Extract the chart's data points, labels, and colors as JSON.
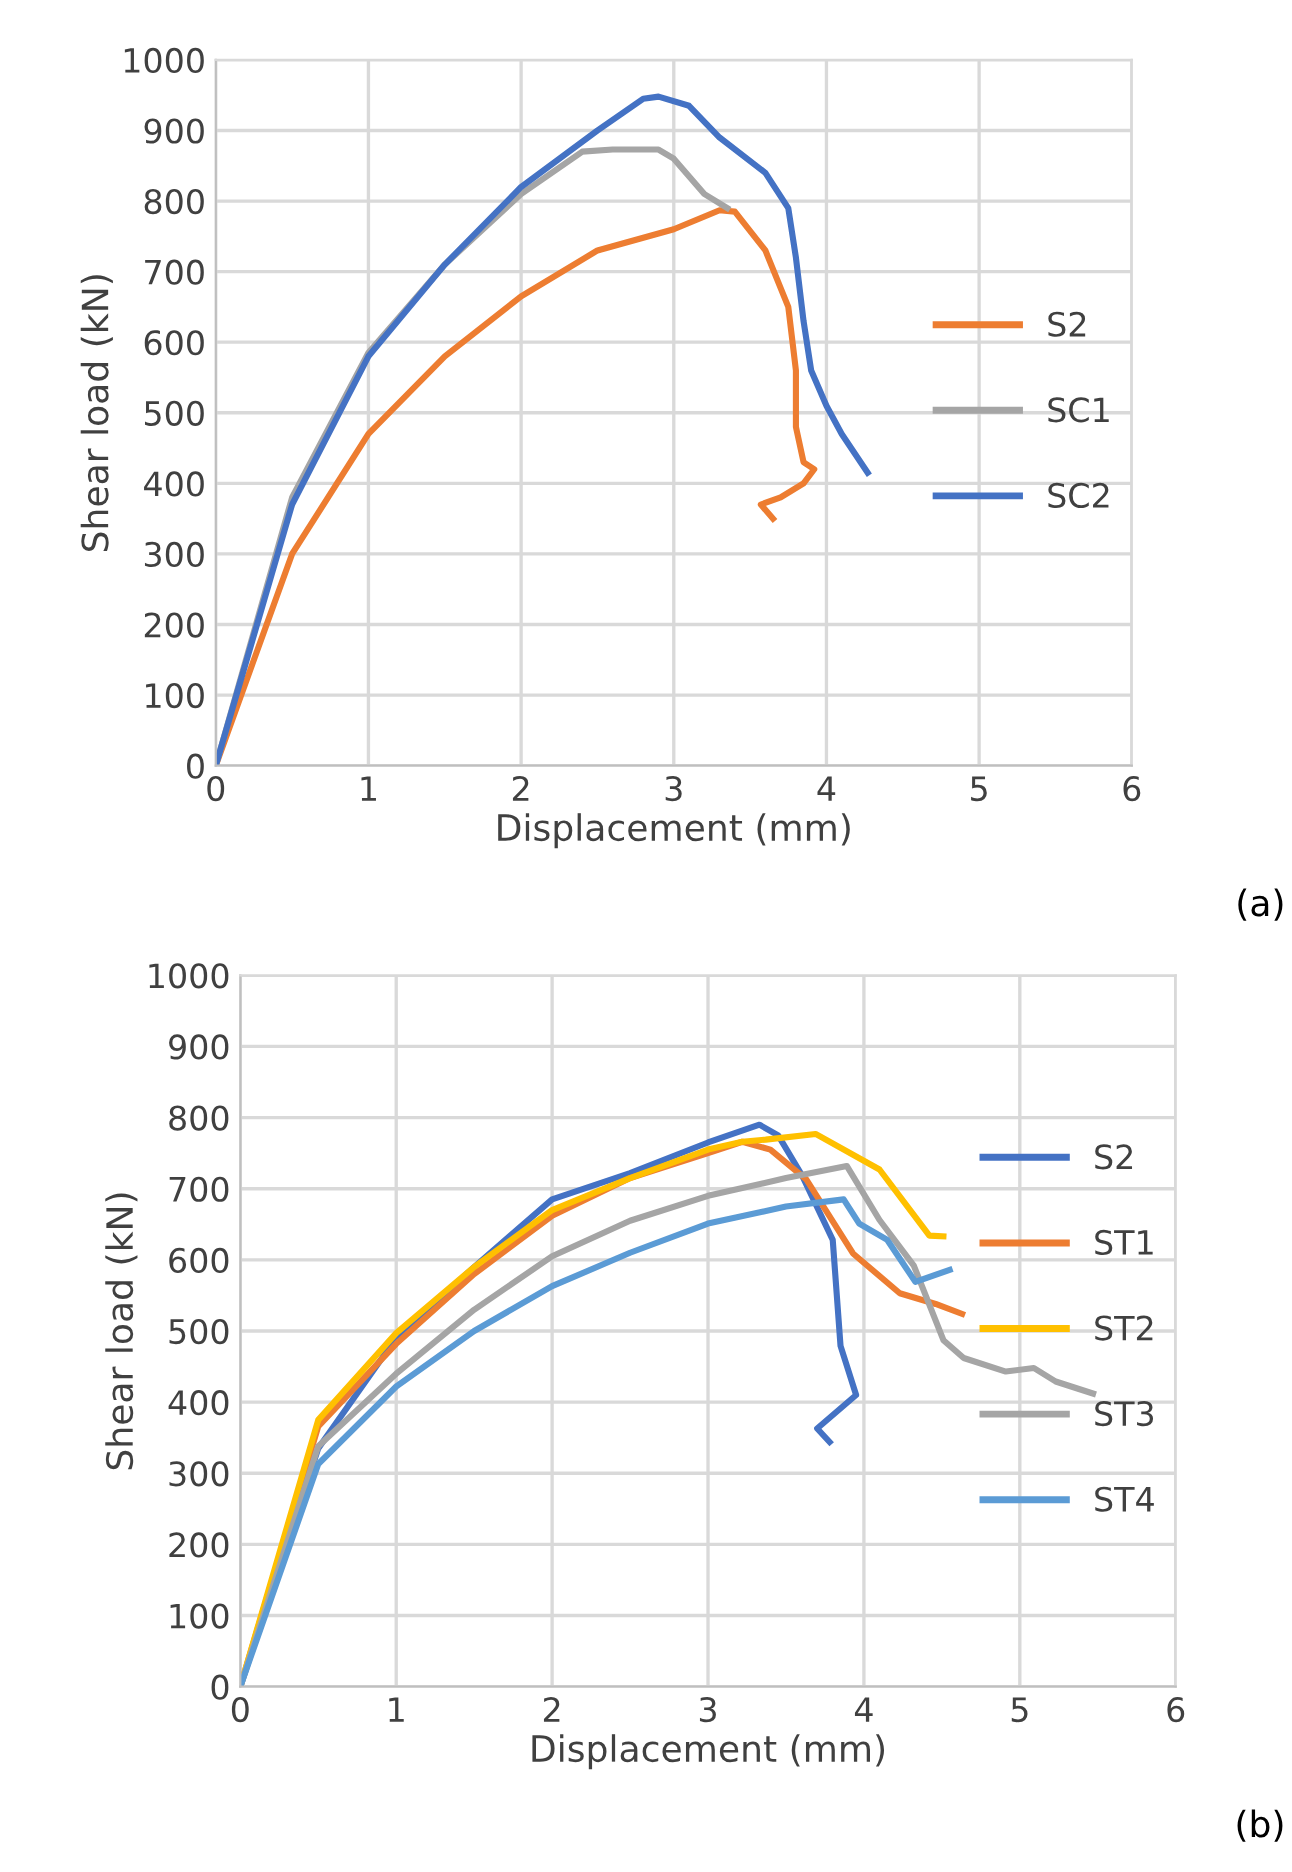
{
  "chart_data": [
    {
      "type": "line",
      "xlabel": "Displacement (mm)",
      "ylabel": "Shear load (kN)",
      "xlim": [
        0,
        6
      ],
      "ylim": [
        0,
        1000
      ],
      "xticks": [
        0,
        1,
        2,
        3,
        4,
        5,
        6
      ],
      "yticks": [
        0,
        100,
        200,
        300,
        400,
        500,
        600,
        700,
        800,
        900,
        1000
      ],
      "grid": true,
      "legend": "right",
      "marker": "none",
      "annotations": [
        "(a)"
      ],
      "series": [
        {
          "name": "S2",
          "color": "#ed7d31",
          "x": [
            0,
            0.5,
            1,
            1.5,
            2,
            2.5,
            3.0,
            3.3,
            3.4,
            3.6,
            3.75,
            3.8,
            3.8,
            3.85,
            3.92,
            3.85,
            3.7,
            3.57,
            3.65
          ],
          "values": [
            0,
            300,
            470,
            580,
            665,
            730,
            760,
            787,
            785,
            730,
            650,
            560,
            480,
            430,
            420,
            400,
            380,
            370,
            350
          ]
        },
        {
          "name": "SC1",
          "color": "#a5a5a5",
          "x": [
            0,
            0.5,
            1,
            1.5,
            2,
            2.4,
            2.6,
            2.9,
            3.0,
            3.2,
            3.35
          ],
          "values": [
            0,
            380,
            585,
            710,
            810,
            870,
            873,
            873,
            860,
            810,
            790
          ]
        },
        {
          "name": "SC2",
          "color": "#4472c4",
          "x": [
            0,
            0.5,
            1,
            1.5,
            2,
            2.5,
            2.8,
            2.9,
            3.1,
            3.3,
            3.6,
            3.75,
            3.8,
            3.85,
            3.9,
            4.0,
            4.1,
            4.27
          ],
          "values": [
            0,
            370,
            580,
            710,
            820,
            900,
            945,
            948,
            935,
            890,
            840,
            790,
            720,
            630,
            560,
            510,
            470,
            415
          ]
        }
      ]
    },
    {
      "type": "line",
      "xlabel": "Displacement (mm)",
      "ylabel": "Shear load (kN)",
      "xlim": [
        0,
        6
      ],
      "ylim": [
        0,
        1000
      ],
      "xticks": [
        0,
        1,
        2,
        3,
        4,
        5,
        6
      ],
      "yticks": [
        0,
        100,
        200,
        300,
        400,
        500,
        600,
        700,
        800,
        900,
        1000
      ],
      "grid": true,
      "legend": "right",
      "marker": "none",
      "annotations": [
        "(b)"
      ],
      "series": [
        {
          "name": "S2",
          "color": "#4472c4",
          "x": [
            0,
            0.5,
            1,
            1.5,
            2,
            2.5,
            3,
            3.33,
            3.45,
            3.6,
            3.8,
            3.85,
            3.95,
            3.7,
            3.78
          ],
          "values": [
            0,
            335,
            490,
            590,
            685,
            722,
            765,
            790,
            775,
            720,
            628,
            479,
            410,
            363,
            344
          ]
        },
        {
          "name": "ST1",
          "color": "#ed7d31",
          "x": [
            0,
            0.5,
            1,
            1.5,
            2,
            2.5,
            3,
            3.22,
            3.4,
            3.63,
            3.93,
            4.23,
            4.46,
            4.63
          ],
          "values": [
            0,
            366,
            482,
            580,
            662,
            715,
            750,
            766,
            755,
            713,
            609,
            553,
            538,
            524
          ]
        },
        {
          "name": "ST2",
          "color": "#ffc000",
          "x": [
            0,
            0.5,
            1,
            1.5,
            2,
            2.5,
            3,
            3.22,
            3.37,
            3.69,
            4.1,
            4.42,
            4.51
          ],
          "values": [
            0,
            375,
            497,
            590,
            670,
            715,
            755,
            766,
            769,
            777,
            727,
            634,
            633
          ]
        },
        {
          "name": "ST3",
          "color": "#a5a5a5",
          "x": [
            0,
            0.5,
            1,
            1.5,
            2,
            2.5,
            3,
            3.5,
            3.89,
            4.1,
            4.32,
            4.51,
            4.64,
            4.91,
            5.09,
            5.23,
            5.47
          ],
          "values": [
            0,
            338,
            440,
            530,
            605,
            655,
            690,
            715,
            732,
            656,
            592,
            487,
            462,
            443,
            448,
            429,
            412
          ]
        },
        {
          "name": "ST4",
          "color": "#5b9bd5",
          "x": [
            0,
            0.5,
            1,
            1.5,
            2,
            2.5,
            3,
            3.5,
            3.87,
            3.97,
            4.15,
            4.33,
            4.55
          ],
          "values": [
            0,
            313,
            422,
            500,
            563,
            610,
            651,
            675,
            685,
            651,
            628,
            569,
            586
          ]
        }
      ]
    }
  ]
}
